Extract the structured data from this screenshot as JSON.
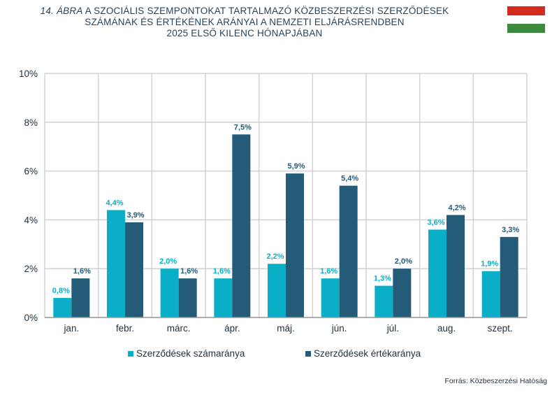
{
  "title": {
    "lead": "14. ÁBRA",
    "line1_rest": "A SZOCIÁLIS SZEMPONTOKAT TARTALMAZÓ KÖZBESZERZÉSI SZERZŐDÉSEK",
    "line2": "SZÁMÁNAK ÉS ÉRTÉKÉNEK ARÁNYAI A NEMZETI ELJÁRÁSRENDBEN",
    "line3": "2025 ELSŐ KILENC HÓNAPJÁBAN"
  },
  "flag": {
    "colors": [
      "#d52b1e",
      "#ffffff",
      "#3c8a3e"
    ]
  },
  "source": "Forrás: Közbeszerzési Hatóság",
  "colors": {
    "series1": "#0aaec6",
    "series2": "#235b78",
    "grid": "#d2d2d2",
    "axis": "#9a9a9a"
  },
  "chart_data": {
    "type": "bar",
    "categories": [
      "jan.",
      "febr.",
      "márc.",
      "ápr.",
      "máj.",
      "jún.",
      "júl.",
      "aug.",
      "szept."
    ],
    "series": [
      {
        "name": "Szerződések számaránya",
        "values": [
          0.8,
          4.4,
          2.0,
          1.6,
          2.2,
          1.6,
          1.3,
          3.6,
          1.9
        ],
        "labels": [
          "0,8%",
          "4,4%",
          "2,0%",
          "1,6%",
          "2,2%",
          "1,6%",
          "1,3%",
          "3,6%",
          "1,9%"
        ]
      },
      {
        "name": "Szerződések értékaránya",
        "values": [
          1.6,
          3.9,
          1.6,
          7.5,
          5.9,
          5.4,
          2.0,
          4.2,
          3.3
        ],
        "labels": [
          "1,6%",
          "3,9%",
          "1,6%",
          "7,5%",
          "5,9%",
          "5,4%",
          "2,0%",
          "4,2%",
          "3,3%"
        ]
      }
    ],
    "ylim": [
      0,
      10
    ],
    "yticks": [
      0,
      2,
      4,
      6,
      8,
      10
    ],
    "ytick_labels": [
      "0%",
      "2%",
      "4%",
      "6%",
      "8%",
      "10%"
    ],
    "grid": true,
    "legend": "bottom"
  }
}
